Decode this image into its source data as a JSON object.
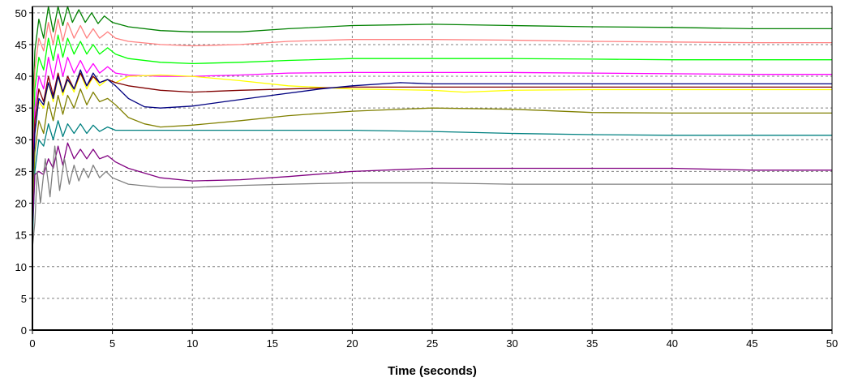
{
  "chart_data": {
    "type": "line",
    "title": "",
    "xlabel": "Time (seconds)",
    "ylabel": "",
    "xlim": [
      0,
      50
    ],
    "ylim": [
      0,
      51
    ],
    "x_ticks": [
      0,
      5,
      10,
      15,
      20,
      25,
      30,
      35,
      40,
      45,
      50
    ],
    "y_ticks": [
      0,
      5,
      10,
      15,
      20,
      25,
      30,
      35,
      40,
      45,
      50
    ],
    "grid": true,
    "legend": "none",
    "series": [
      {
        "color": "#008000",
        "points": [
          [
            0,
            34
          ],
          [
            0.15,
            44
          ],
          [
            0.4,
            49
          ],
          [
            0.7,
            46
          ],
          [
            1,
            51
          ],
          [
            1.3,
            47
          ],
          [
            1.6,
            51
          ],
          [
            1.9,
            48
          ],
          [
            2.2,
            51
          ],
          [
            2.5,
            48.5
          ],
          [
            2.9,
            50.5
          ],
          [
            3.3,
            48.5
          ],
          [
            3.7,
            50
          ],
          [
            4.1,
            48.3
          ],
          [
            4.5,
            49.5
          ],
          [
            5,
            48.5
          ],
          [
            6,
            47.8
          ],
          [
            8,
            47.2
          ],
          [
            10,
            47
          ],
          [
            13,
            47
          ],
          [
            16,
            47.5
          ],
          [
            20,
            48
          ],
          [
            25,
            48.2
          ],
          [
            30,
            48
          ],
          [
            35,
            47.8
          ],
          [
            40,
            47.7
          ],
          [
            45,
            47.5
          ],
          [
            50,
            47.5
          ]
        ]
      },
      {
        "color": "#ff8080",
        "points": [
          [
            0,
            30
          ],
          [
            0.15,
            41
          ],
          [
            0.4,
            46
          ],
          [
            0.7,
            44
          ],
          [
            1,
            48.5
          ],
          [
            1.3,
            45
          ],
          [
            1.6,
            49
          ],
          [
            1.9,
            45.5
          ],
          [
            2.2,
            48.5
          ],
          [
            2.6,
            46
          ],
          [
            3,
            48
          ],
          [
            3.4,
            46
          ],
          [
            3.8,
            47.5
          ],
          [
            4.2,
            46
          ],
          [
            4.7,
            47
          ],
          [
            5.2,
            46
          ],
          [
            6,
            45.5
          ],
          [
            8,
            45
          ],
          [
            10,
            44.8
          ],
          [
            13,
            45
          ],
          [
            16,
            45.5
          ],
          [
            20,
            45.8
          ],
          [
            25,
            45.8
          ],
          [
            30,
            45.7
          ],
          [
            35,
            45.5
          ],
          [
            40,
            45.4
          ],
          [
            45,
            45.3
          ],
          [
            50,
            45.3
          ]
        ]
      },
      {
        "color": "#00ff00",
        "points": [
          [
            0,
            27
          ],
          [
            0.15,
            38
          ],
          [
            0.4,
            43
          ],
          [
            0.7,
            41
          ],
          [
            1,
            46
          ],
          [
            1.3,
            42.5
          ],
          [
            1.6,
            46.5
          ],
          [
            1.9,
            43
          ],
          [
            2.2,
            46
          ],
          [
            2.6,
            43.5
          ],
          [
            3,
            45.5
          ],
          [
            3.4,
            43.5
          ],
          [
            3.8,
            45
          ],
          [
            4.2,
            43.5
          ],
          [
            4.7,
            44.5
          ],
          [
            5.2,
            43.5
          ],
          [
            6,
            42.8
          ],
          [
            8,
            42.2
          ],
          [
            10,
            42
          ],
          [
            13,
            42.2
          ],
          [
            16,
            42.5
          ],
          [
            20,
            42.8
          ],
          [
            25,
            42.8
          ],
          [
            30,
            42.8
          ],
          [
            35,
            42.7
          ],
          [
            40,
            42.6
          ],
          [
            45,
            42.6
          ],
          [
            50,
            42.6
          ]
        ]
      },
      {
        "color": "#ff00ff",
        "points": [
          [
            0,
            24
          ],
          [
            0.15,
            35
          ],
          [
            0.4,
            40
          ],
          [
            0.7,
            38
          ],
          [
            1,
            43
          ],
          [
            1.3,
            39.5
          ],
          [
            1.6,
            43.5
          ],
          [
            1.9,
            40
          ],
          [
            2.2,
            43
          ],
          [
            2.6,
            40.5
          ],
          [
            3,
            42.5
          ],
          [
            3.4,
            40.5
          ],
          [
            3.8,
            42
          ],
          [
            4.2,
            40.5
          ],
          [
            4.7,
            41.5
          ],
          [
            5.2,
            40.5
          ],
          [
            6,
            40.2
          ],
          [
            8,
            40
          ],
          [
            10,
            40
          ],
          [
            13,
            40.2
          ],
          [
            16,
            40.5
          ],
          [
            20,
            40.6
          ],
          [
            25,
            40.6
          ],
          [
            30,
            40.6
          ],
          [
            35,
            40.5
          ],
          [
            40,
            40.4
          ],
          [
            45,
            40.3
          ],
          [
            50,
            40.3
          ]
        ]
      },
      {
        "color": "#ffff00",
        "points": [
          [
            0,
            21
          ],
          [
            0.15,
            32
          ],
          [
            0.4,
            36
          ],
          [
            0.7,
            35
          ],
          [
            1,
            39
          ],
          [
            1.3,
            36
          ],
          [
            1.6,
            40
          ],
          [
            1.9,
            37
          ],
          [
            2.2,
            39.5
          ],
          [
            2.6,
            37.5
          ],
          [
            3,
            40.5
          ],
          [
            3.4,
            38
          ],
          [
            3.8,
            40
          ],
          [
            4.2,
            38.5
          ],
          [
            4.7,
            39.5
          ],
          [
            5.2,
            39
          ],
          [
            6,
            40
          ],
          [
            8,
            40.2
          ],
          [
            10,
            40
          ],
          [
            13,
            39.3
          ],
          [
            16,
            38.5
          ],
          [
            20,
            38
          ],
          [
            25,
            37.8
          ],
          [
            27,
            37.5
          ],
          [
            30,
            37.8
          ],
          [
            35,
            37.9
          ],
          [
            40,
            37.9
          ],
          [
            45,
            37.9
          ],
          [
            50,
            37.9
          ]
        ]
      },
      {
        "color": "#800000",
        "points": [
          [
            0,
            22
          ],
          [
            0.15,
            33
          ],
          [
            0.4,
            38
          ],
          [
            0.7,
            36
          ],
          [
            1,
            40
          ],
          [
            1.3,
            37
          ],
          [
            1.6,
            40.5
          ],
          [
            1.9,
            37.5
          ],
          [
            2.2,
            40
          ],
          [
            2.6,
            38
          ],
          [
            3,
            40.5
          ],
          [
            3.4,
            38.5
          ],
          [
            3.8,
            40
          ],
          [
            4.2,
            39
          ],
          [
            4.7,
            39.5
          ],
          [
            5.2,
            39
          ],
          [
            6,
            38.5
          ],
          [
            8,
            37.8
          ],
          [
            10,
            37.5
          ],
          [
            13,
            37.8
          ],
          [
            16,
            38
          ],
          [
            20,
            38.3
          ],
          [
            25,
            38.3
          ],
          [
            30,
            38.3
          ],
          [
            35,
            38.3
          ],
          [
            40,
            38.3
          ],
          [
            45,
            38.3
          ],
          [
            50,
            38.3
          ]
        ]
      },
      {
        "color": "#000080",
        "points": [
          [
            0,
            20
          ],
          [
            0.15,
            31
          ],
          [
            0.4,
            36.5
          ],
          [
            0.7,
            35.5
          ],
          [
            1,
            39
          ],
          [
            1.3,
            36.5
          ],
          [
            1.6,
            40
          ],
          [
            1.9,
            37.5
          ],
          [
            2.2,
            39.5
          ],
          [
            2.6,
            38
          ],
          [
            3,
            41
          ],
          [
            3.4,
            38.5
          ],
          [
            3.8,
            40.5
          ],
          [
            4.2,
            39
          ],
          [
            4.7,
            39.5
          ],
          [
            5.2,
            38.5
          ],
          [
            6,
            36.5
          ],
          [
            7,
            35.2
          ],
          [
            8,
            35
          ],
          [
            10,
            35.3
          ],
          [
            12,
            36
          ],
          [
            15,
            37
          ],
          [
            18,
            38
          ],
          [
            20,
            38.5
          ],
          [
            23,
            39
          ],
          [
            25,
            38.8
          ],
          [
            30,
            38.8
          ],
          [
            35,
            38.8
          ],
          [
            40,
            38.8
          ],
          [
            45,
            38.8
          ],
          [
            50,
            38.8
          ]
        ]
      },
      {
        "color": "#808000",
        "points": [
          [
            0,
            17
          ],
          [
            0.15,
            28
          ],
          [
            0.4,
            33
          ],
          [
            0.7,
            31
          ],
          [
            1,
            36
          ],
          [
            1.3,
            33
          ],
          [
            1.6,
            37
          ],
          [
            1.9,
            34
          ],
          [
            2.2,
            37
          ],
          [
            2.6,
            35
          ],
          [
            3,
            38
          ],
          [
            3.4,
            35.5
          ],
          [
            3.8,
            37.5
          ],
          [
            4.2,
            36
          ],
          [
            4.7,
            36.5
          ],
          [
            5.2,
            35.5
          ],
          [
            6,
            33.5
          ],
          [
            7,
            32.5
          ],
          [
            8,
            32
          ],
          [
            10,
            32.3
          ],
          [
            13,
            33
          ],
          [
            16,
            33.8
          ],
          [
            20,
            34.5
          ],
          [
            25,
            35
          ],
          [
            30,
            34.8
          ],
          [
            35,
            34.3
          ],
          [
            40,
            34.2
          ],
          [
            45,
            34.2
          ],
          [
            50,
            34.2
          ]
        ]
      },
      {
        "color": "#008080",
        "points": [
          [
            0,
            14
          ],
          [
            0.15,
            25
          ],
          [
            0.4,
            30
          ],
          [
            0.7,
            29
          ],
          [
            1,
            32.5
          ],
          [
            1.3,
            30
          ],
          [
            1.6,
            33
          ],
          [
            1.9,
            30.5
          ],
          [
            2.2,
            32.5
          ],
          [
            2.6,
            31
          ],
          [
            3,
            32.5
          ],
          [
            3.4,
            31
          ],
          [
            3.8,
            32.3
          ],
          [
            4.2,
            31.3
          ],
          [
            4.7,
            32
          ],
          [
            5.2,
            31.5
          ],
          [
            6,
            31.5
          ],
          [
            8,
            31.5
          ],
          [
            10,
            31.5
          ],
          [
            13,
            31.5
          ],
          [
            16,
            31.5
          ],
          [
            20,
            31.5
          ],
          [
            25,
            31.3
          ],
          [
            30,
            31
          ],
          [
            35,
            30.8
          ],
          [
            40,
            30.7
          ],
          [
            45,
            30.7
          ],
          [
            50,
            30.7
          ]
        ]
      },
      {
        "color": "#800080",
        "points": [
          [
            0,
            16
          ],
          [
            0.15,
            24.5
          ],
          [
            0.4,
            25
          ],
          [
            0.7,
            24.5
          ],
          [
            1,
            27
          ],
          [
            1.3,
            25.5
          ],
          [
            1.6,
            29
          ],
          [
            1.9,
            26
          ],
          [
            2.2,
            29.5
          ],
          [
            2.6,
            27
          ],
          [
            3,
            28.5
          ],
          [
            3.4,
            27
          ],
          [
            3.8,
            28.5
          ],
          [
            4.2,
            27
          ],
          [
            4.7,
            27.5
          ],
          [
            5.2,
            26.5
          ],
          [
            6,
            25.5
          ],
          [
            8,
            24
          ],
          [
            10,
            23.5
          ],
          [
            13,
            23.7
          ],
          [
            16,
            24.2
          ],
          [
            20,
            25
          ],
          [
            25,
            25.5
          ],
          [
            30,
            25.5
          ],
          [
            35,
            25.5
          ],
          [
            40,
            25.5
          ],
          [
            45,
            25.2
          ],
          [
            50,
            25.2
          ]
        ]
      },
      {
        "color": "#808080",
        "points": [
          [
            0,
            13
          ],
          [
            0.15,
            17
          ],
          [
            0.3,
            25
          ],
          [
            0.5,
            20
          ],
          [
            0.8,
            27
          ],
          [
            1.1,
            21
          ],
          [
            1.4,
            29
          ],
          [
            1.7,
            22
          ],
          [
            2.0,
            27
          ],
          [
            2.3,
            23
          ],
          [
            2.6,
            26
          ],
          [
            2.9,
            23.5
          ],
          [
            3.2,
            25.5
          ],
          [
            3.5,
            24
          ],
          [
            3.8,
            26
          ],
          [
            4.2,
            24
          ],
          [
            4.6,
            25
          ],
          [
            5.0,
            24
          ],
          [
            6,
            23
          ],
          [
            8,
            22.5
          ],
          [
            10,
            22.5
          ],
          [
            13,
            22.8
          ],
          [
            16,
            23
          ],
          [
            20,
            23.2
          ],
          [
            25,
            23.2
          ],
          [
            30,
            23
          ],
          [
            35,
            23
          ],
          [
            40,
            23
          ],
          [
            45,
            23
          ],
          [
            50,
            23
          ]
        ]
      }
    ]
  }
}
